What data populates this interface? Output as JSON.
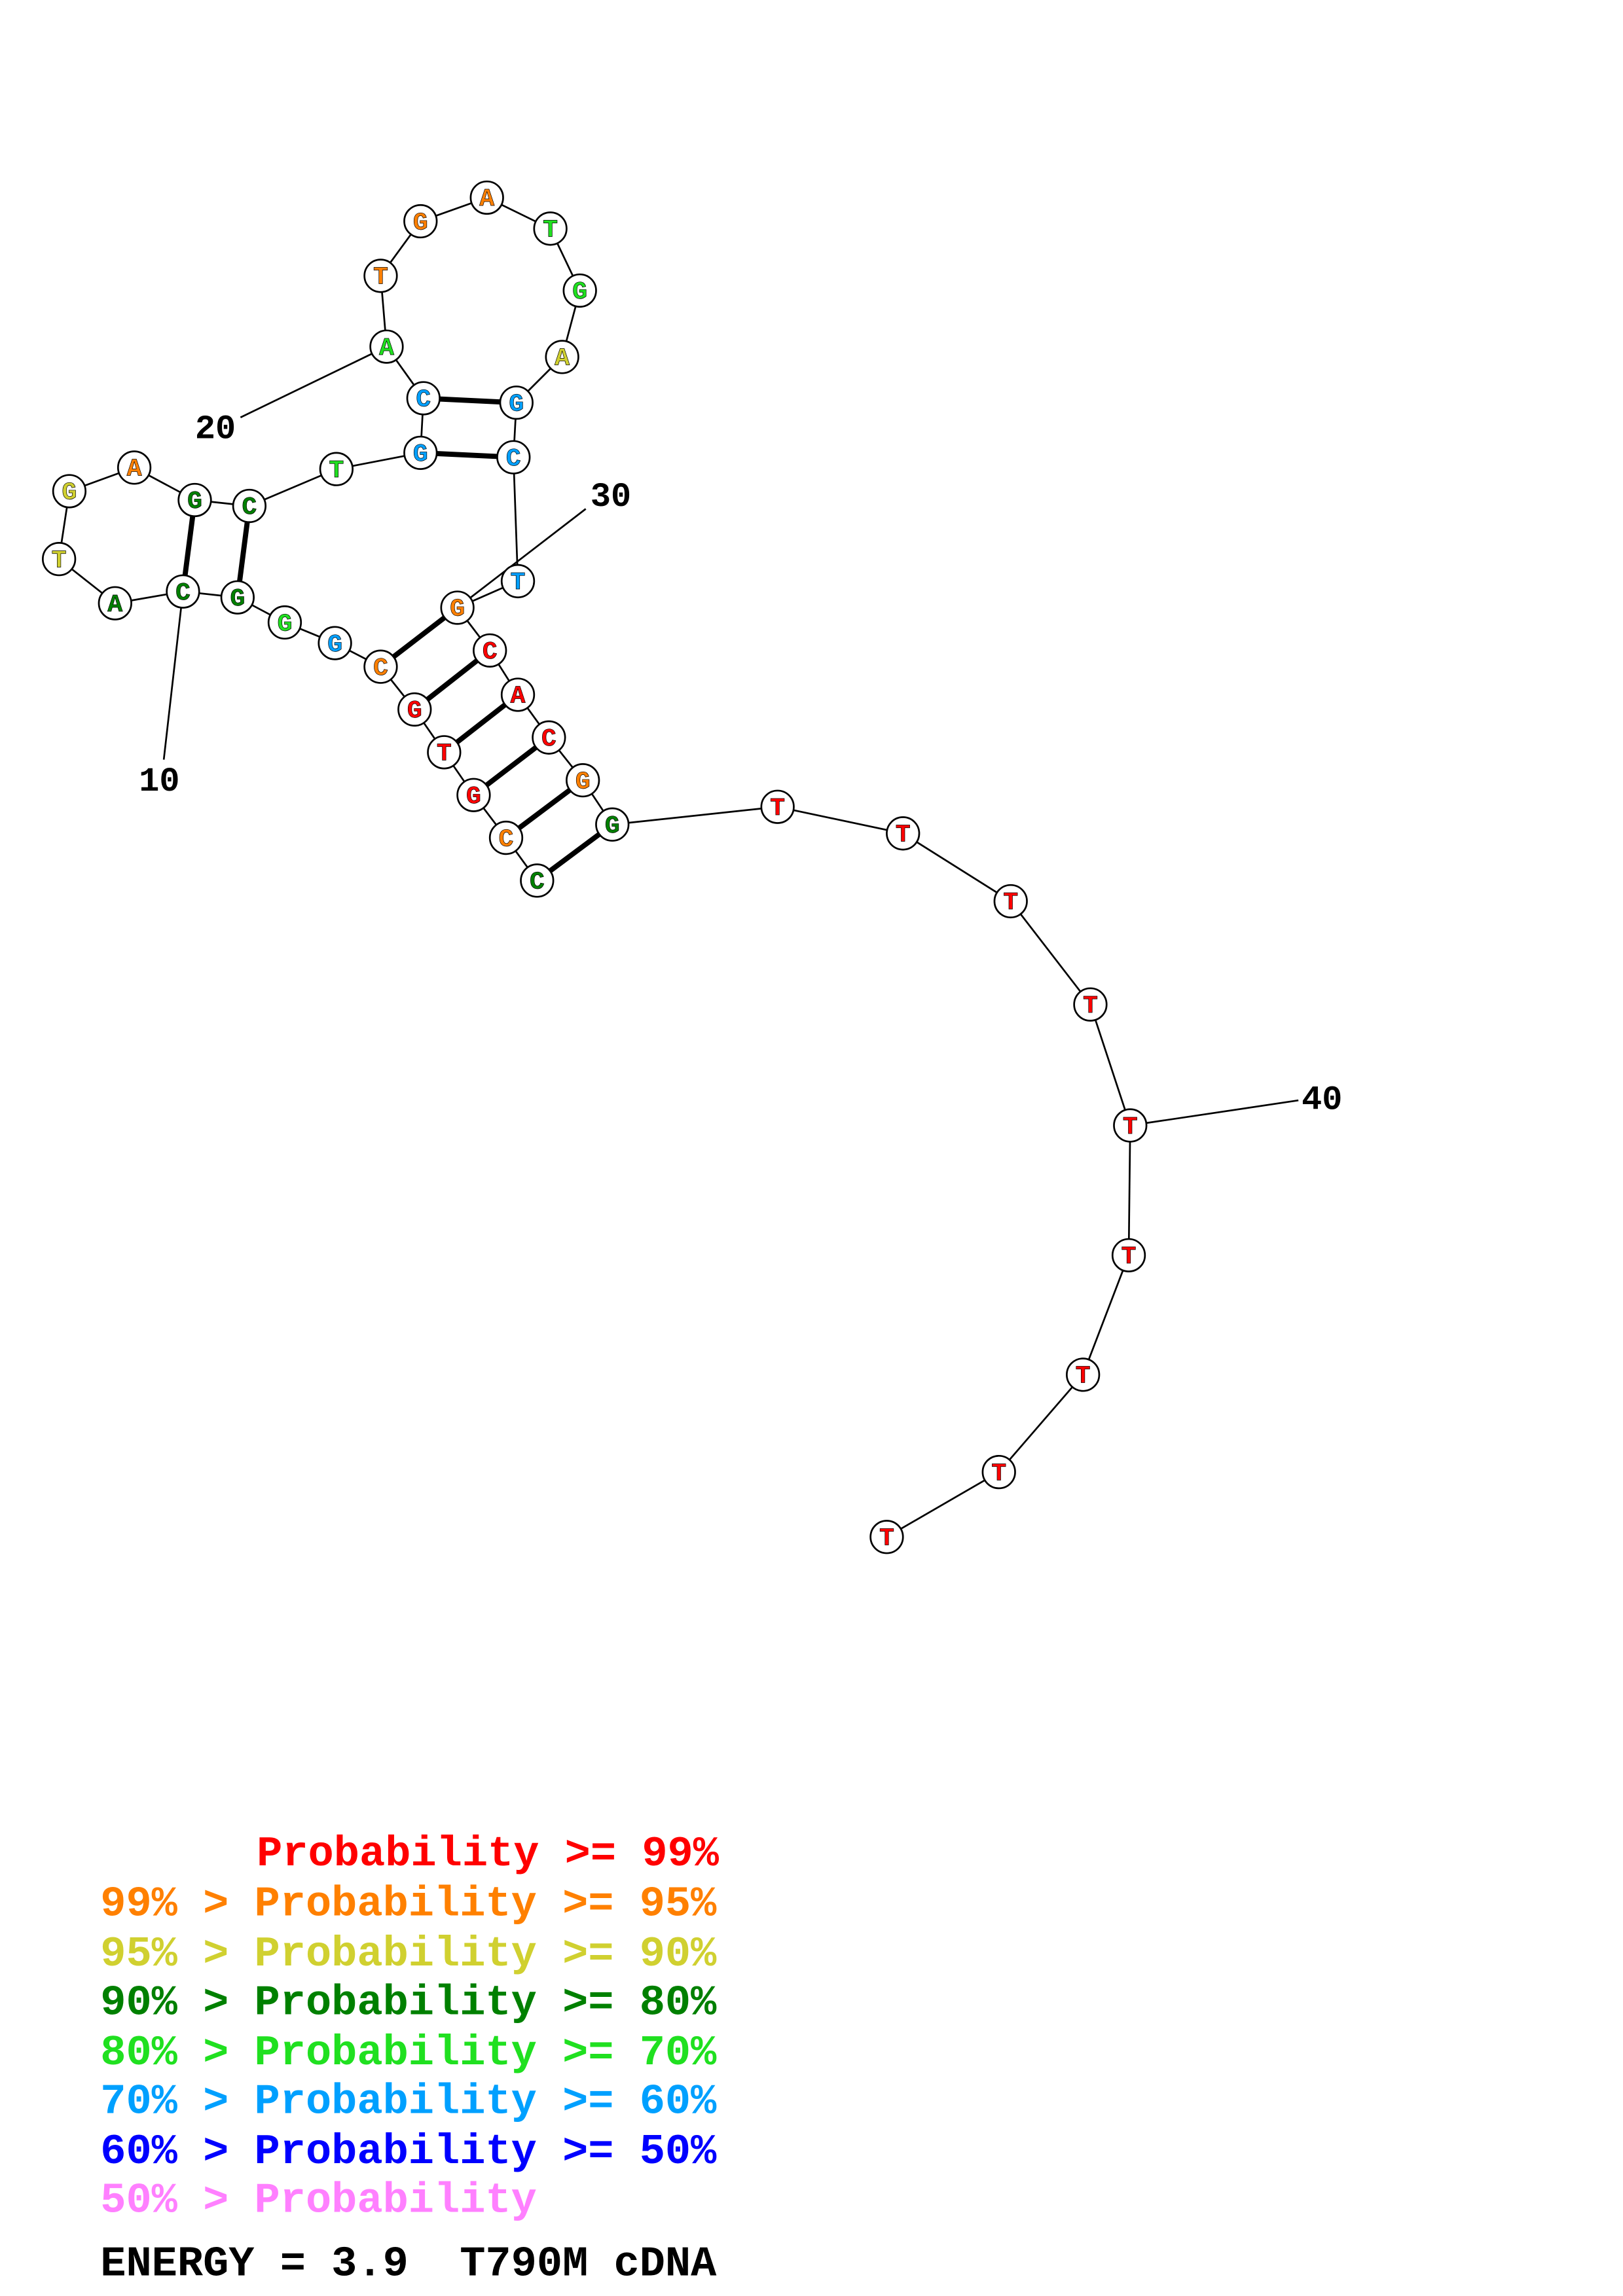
{
  "nodes": [
    {
      "letter": "C",
      "color": "#008000"
    },
    {
      "letter": "C",
      "color": "#ff8000"
    },
    {
      "letter": "G",
      "color": "#ff0000"
    },
    {
      "letter": "T",
      "color": "#ff0000"
    },
    {
      "letter": "G",
      "color": "#ff0000"
    },
    {
      "letter": "C",
      "color": "#ff8000"
    },
    {
      "letter": "G",
      "color": "#00a0ff"
    },
    {
      "letter": "G",
      "color": "#20e020"
    },
    {
      "letter": "G",
      "color": "#008000"
    },
    {
      "letter": "C",
      "color": "#008000"
    },
    {
      "letter": "A",
      "color": "#008000"
    },
    {
      "letter": "T",
      "color": "#d0d030"
    },
    {
      "letter": "G",
      "color": "#d0d030"
    },
    {
      "letter": "A",
      "color": "#ff8000"
    },
    {
      "letter": "G",
      "color": "#008000"
    },
    {
      "letter": "C",
      "color": "#008000"
    },
    {
      "letter": "T",
      "color": "#20e020"
    },
    {
      "letter": "G",
      "color": "#00a0ff"
    },
    {
      "letter": "C",
      "color": "#00a0ff"
    },
    {
      "letter": "A",
      "color": "#20e020"
    },
    {
      "letter": "T",
      "color": "#ff8000"
    },
    {
      "letter": "G",
      "color": "#ff8000"
    },
    {
      "letter": "A",
      "color": "#ff8000"
    },
    {
      "letter": "T",
      "color": "#20e020"
    },
    {
      "letter": "G",
      "color": "#20e020"
    },
    {
      "letter": "A",
      "color": "#d0d030"
    },
    {
      "letter": "G",
      "color": "#00a0ff"
    },
    {
      "letter": "C",
      "color": "#00a0ff"
    },
    {
      "letter": "T",
      "color": "#00a0ff"
    },
    {
      "letter": "G",
      "color": "#ff8000"
    },
    {
      "letter": "C",
      "color": "#ff0000"
    },
    {
      "letter": "A",
      "color": "#ff0000"
    },
    {
      "letter": "C",
      "color": "#ff0000"
    },
    {
      "letter": "G",
      "color": "#ff8000"
    },
    {
      "letter": "G",
      "color": "#008000"
    },
    {
      "letter": "T",
      "color": "#ff0000"
    },
    {
      "letter": "T",
      "color": "#ff0000"
    },
    {
      "letter": "T",
      "color": "#ff0000"
    },
    {
      "letter": "T",
      "color": "#ff0000"
    },
    {
      "letter": "T",
      "color": "#ff0000"
    },
    {
      "letter": "T",
      "color": "#ff0000"
    },
    {
      "letter": "T",
      "color": "#ff0000"
    },
    {
      "letter": "T",
      "color": "#ff0000"
    },
    {
      "letter": "T",
      "color": "#ff0000"
    }
  ],
  "position_labels": [
    "10",
    "20",
    "30",
    "40"
  ],
  "legend": [
    {
      "text": "Probability >= 99%",
      "color": "#ff0000"
    },
    {
      "text": "99% > Probability >= 95%",
      "color": "#ff8000"
    },
    {
      "text": "95% > Probability >= 90%",
      "color": "#d0d030"
    },
    {
      "text": "90% > Probability >= 80%",
      "color": "#008000"
    },
    {
      "text": "80% > Probability >= 70%",
      "color": "#20e020"
    },
    {
      "text": "70% > Probability >= 60%",
      "color": "#00a0ff"
    },
    {
      "text": "60% > Probability >= 50%",
      "color": "#0000ff"
    },
    {
      "text": "50% > Probability",
      "color": "#ff80ff"
    }
  ],
  "footer": "ENERGY = 3.9  T790M cDNA"
}
